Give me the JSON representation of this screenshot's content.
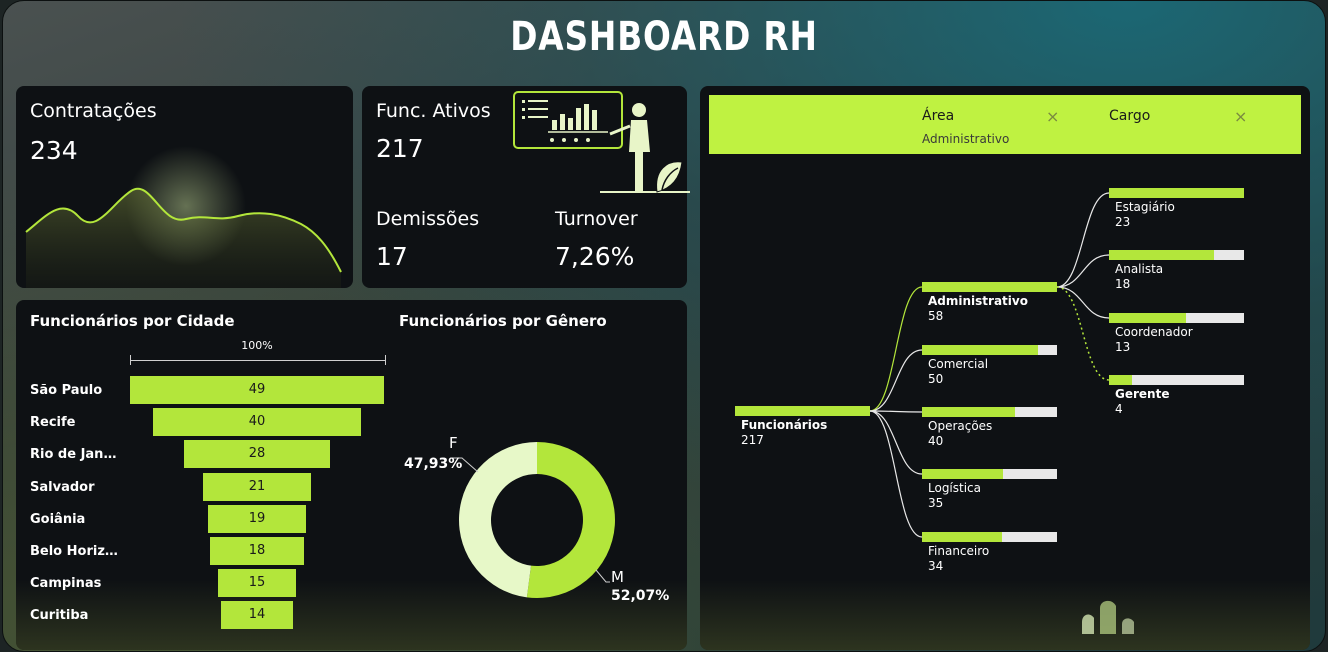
{
  "header": {
    "title": "DASHBOARD RH"
  },
  "kpis": {
    "contratacoes": {
      "label": "Contratações",
      "value": "234"
    },
    "ativos": {
      "label": "Func. Ativos",
      "value": "217"
    },
    "demissoes": {
      "label": "Demissões",
      "value": "17"
    },
    "turnover": {
      "label": "Turnover",
      "value": "7,26%"
    }
  },
  "cidade": {
    "title": "Funcionários por Cidade",
    "scale_label": "100%",
    "rows": [
      {
        "name": "São Paulo",
        "value": 49
      },
      {
        "name": "Recife",
        "value": 40
      },
      {
        "name": "Rio de Janei...",
        "value": 28
      },
      {
        "name": "Salvador",
        "value": 21
      },
      {
        "name": "Goiânia",
        "value": 19
      },
      {
        "name": "Belo Horizo...",
        "value": 18
      },
      {
        "name": "Campinas",
        "value": 15
      },
      {
        "name": "Curitiba",
        "value": 14
      }
    ]
  },
  "genero": {
    "title": "Funcionários por Gênero",
    "f_label": "F",
    "f_pct": "47,93%",
    "m_label": "M",
    "m_pct": "52,07%",
    "colors": {
      "F": "#e7f8c8",
      "M": "#b3e63b"
    }
  },
  "chart_data": {
    "type": "pie",
    "categories": [
      "F",
      "M"
    ],
    "values": [
      47.93,
      52.07
    ],
    "title": "Funcionários por Gênero"
  },
  "filters": {
    "area": {
      "label": "Área",
      "value": "Administrativo"
    },
    "cargo": {
      "label": "Cargo"
    }
  },
  "tree": {
    "root": {
      "label": "Funcionários",
      "value": "217"
    },
    "areas": [
      {
        "label": "Administrativo",
        "value": "58",
        "fill": 1.0
      },
      {
        "label": "Comercial",
        "value": "50",
        "fill": 0.86
      },
      {
        "label": "Operações",
        "value": "40",
        "fill": 0.69
      },
      {
        "label": "Logística",
        "value": "35",
        "fill": 0.6
      },
      {
        "label": "Financeiro",
        "value": "34",
        "fill": 0.59
      }
    ],
    "cargos": [
      {
        "label": "Estagiário",
        "value": "23",
        "fill": 1.0
      },
      {
        "label": "Analista",
        "value": "18",
        "fill": 0.78
      },
      {
        "label": "Coordenador",
        "value": "13",
        "fill": 0.57
      },
      {
        "label": "Gerente",
        "value": "4",
        "fill": 0.17
      }
    ]
  },
  "theme": {
    "accent": "#b3e63b",
    "card": "#0e1114"
  }
}
